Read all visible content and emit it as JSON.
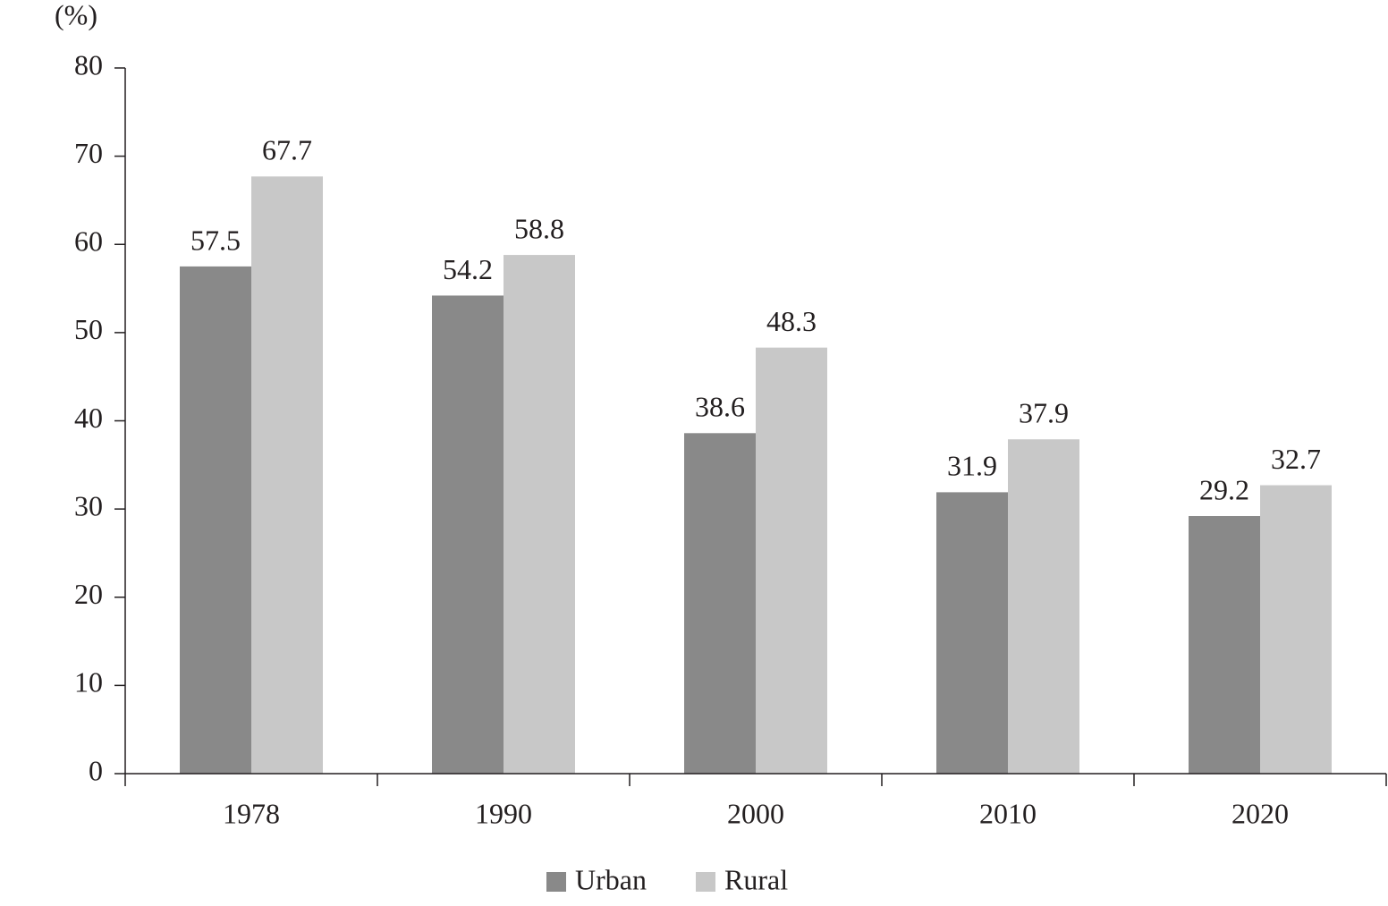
{
  "chart_data": {
    "type": "bar",
    "y_label": "(%)",
    "categories": [
      "1978",
      "1990",
      "2000",
      "2010",
      "2020"
    ],
    "series": [
      {
        "name": "Urban",
        "color": "#898989",
        "values": [
          57.5,
          54.2,
          38.6,
          31.9,
          29.2
        ]
      },
      {
        "name": "Rural",
        "color": "#c8c8c8",
        "values": [
          67.7,
          58.8,
          48.3,
          37.9,
          32.7
        ]
      }
    ],
    "ylim": [
      0,
      80
    ],
    "yticks": [
      0,
      10,
      20,
      30,
      40,
      50,
      60,
      70,
      80
    ]
  }
}
